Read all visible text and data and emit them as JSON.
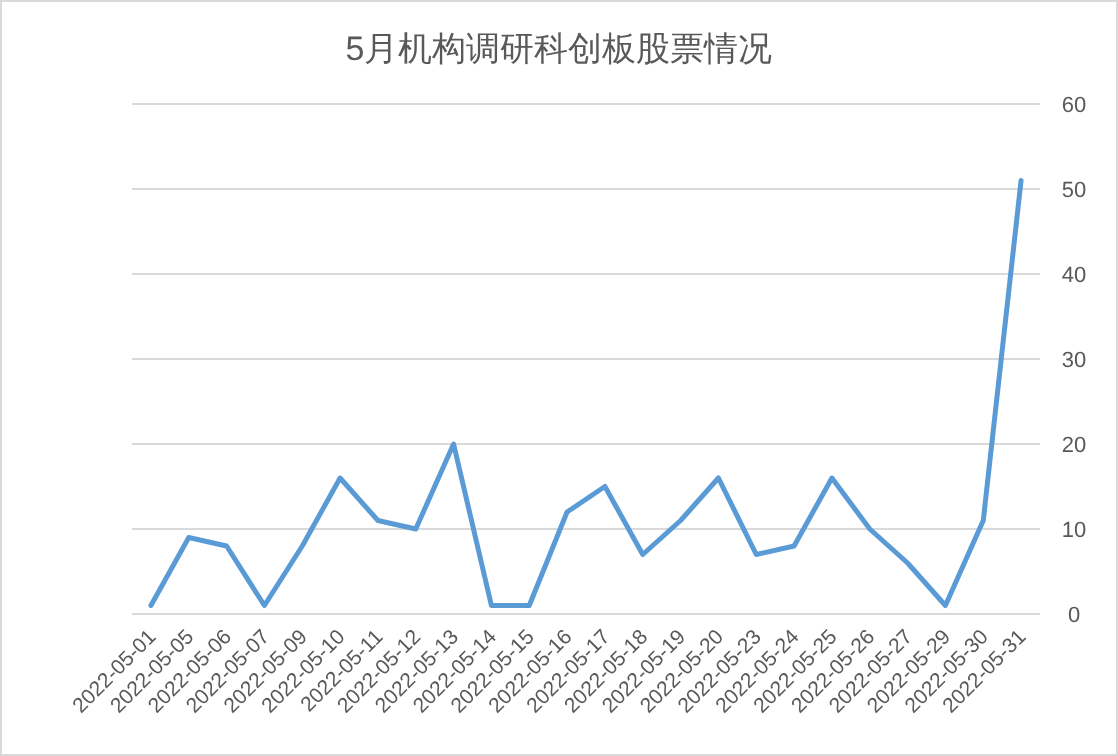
{
  "chart_data": {
    "type": "line",
    "title": "5月机构调研科创板股票情况",
    "categories": [
      "2022-05-01",
      "2022-05-05",
      "2022-05-06",
      "2022-05-07",
      "2022-05-09",
      "2022-05-10",
      "2022-05-11",
      "2022-05-12",
      "2022-05-13",
      "2022-05-14",
      "2022-05-15",
      "2022-05-16",
      "2022-05-17",
      "2022-05-18",
      "2022-05-19",
      "2022-05-20",
      "2022-05-23",
      "2022-05-24",
      "2022-05-25",
      "2022-05-26",
      "2022-05-27",
      "2022-05-29",
      "2022-05-30",
      "2022-05-31"
    ],
    "series": [
      {
        "color": "#5b9bd5",
        "values": [
          1,
          9,
          8,
          1,
          8,
          16,
          11,
          10,
          20,
          1,
          1,
          12,
          15,
          7,
          11,
          16,
          7,
          8,
          16,
          10,
          6,
          1,
          11,
          51
        ]
      }
    ],
    "ylim": [
      0,
      60
    ],
    "yticks": [
      0,
      10,
      20,
      30,
      40,
      50,
      60
    ],
    "grid": "y",
    "marker": "none",
    "line_style": "solid"
  }
}
